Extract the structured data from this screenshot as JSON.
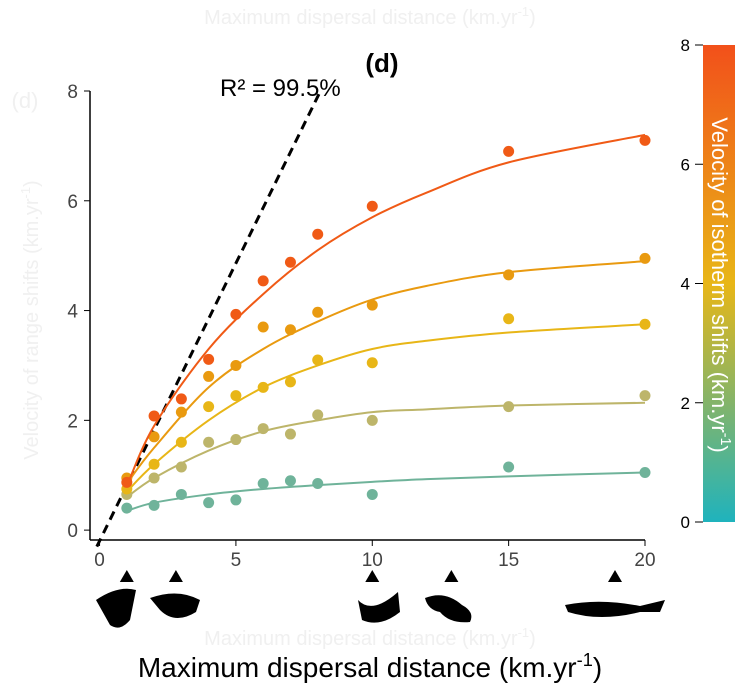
{
  "chart_data": {
    "type": "scatter",
    "title": "(d)",
    "ghost_title": {
      "text": "Maximum dispersal distance (km.yr",
      "sup": "-1",
      "end": ")"
    },
    "ghost_panel": "(d)",
    "ghost_y_label": {
      "text": "Velocity of range shifts (km.yr",
      "sup": "-1",
      "end": ")"
    },
    "ghost_x_label": {
      "text": "Maximum dispersal distance (km.yr",
      "sup": "-1",
      "end": ")"
    },
    "x_label": {
      "text": "Maximum dispersal distance (km.yr",
      "sup": "-1",
      "end": ")"
    },
    "annotation": "R² = 99.5%",
    "x": [
      1,
      2,
      3,
      4,
      5,
      6,
      7,
      8,
      10,
      15,
      20
    ],
    "fit_x": [
      1,
      2,
      4,
      6,
      8,
      10,
      12,
      15,
      20
    ],
    "series": [
      {
        "color": "#6fb39a",
        "values": [
          0.4,
          0.45,
          0.65,
          0.5,
          0.55,
          0.85,
          0.9,
          0.85,
          0.65,
          1.15,
          1.05
        ],
        "fit": [
          0.35,
          0.5,
          0.65,
          0.75,
          0.82,
          0.88,
          0.93,
          0.98,
          1.05
        ]
      },
      {
        "color": "#bdb56a",
        "values": [
          0.65,
          0.95,
          1.15,
          1.6,
          1.65,
          1.85,
          1.75,
          2.1,
          2.0,
          2.25,
          2.45
        ],
        "fit": [
          0.6,
          0.95,
          1.45,
          1.8,
          2.0,
          2.15,
          2.2,
          2.27,
          2.32
        ]
      },
      {
        "color": "#e8b617",
        "values": [
          0.75,
          1.2,
          1.6,
          2.25,
          2.45,
          2.6,
          2.7,
          3.1,
          3.05,
          3.85,
          3.75
        ],
        "fit": [
          0.7,
          1.2,
          2.0,
          2.6,
          3.0,
          3.3,
          3.45,
          3.6,
          3.75
        ]
      },
      {
        "color": "#e99a10",
        "values": [
          0.95,
          1.7,
          2.15,
          2.8,
          3.0,
          3.7,
          3.65,
          3.97,
          4.1,
          4.65,
          4.95
        ],
        "fit": [
          0.85,
          1.5,
          2.6,
          3.3,
          3.8,
          4.2,
          4.45,
          4.7,
          4.9
        ]
      },
      {
        "color": "#f05a16",
        "values": [
          0.87,
          2.08,
          2.39,
          3.11,
          3.93,
          4.54,
          4.88,
          5.39,
          5.9,
          6.9,
          7.1
        ],
        "fit": [
          0.8,
          1.9,
          3.3,
          4.3,
          5.1,
          5.7,
          6.15,
          6.7,
          7.2
        ]
      }
    ],
    "reference_line": {
      "x": [
        -0.1,
        8.1
      ],
      "y": [
        -0.3,
        8
      ]
    },
    "markers_x": [
      1,
      2.8,
      10,
      12.9,
      18.9
    ],
    "xlim": [
      -0.35,
      20
    ],
    "xticks": [
      0,
      5,
      10,
      15,
      20
    ],
    "ylim": [
      -0.18,
      8
    ],
    "yticks": [
      0,
      2,
      4,
      6,
      8
    ],
    "colorbar": {
      "label": {
        "text": "Velocity of isotherm shifts (km.yr",
        "sup": "-1",
        "end": ")"
      },
      "lim": [
        0,
        8
      ],
      "ticks": [
        0,
        2,
        4,
        6,
        8
      ],
      "colors": [
        "#1fb3bd",
        "#e8b617",
        "#f2501a"
      ]
    }
  }
}
